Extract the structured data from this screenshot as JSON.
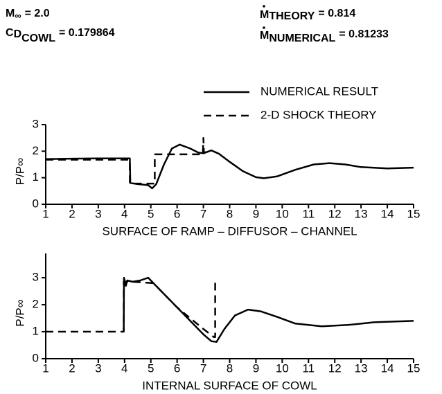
{
  "header": {
    "mach": {
      "base": "M",
      "sub": "∞",
      "rest": "= 2.0"
    },
    "cd": {
      "base": "C",
      "sub": "D",
      "subsub": "COWL",
      "rest": "= 0.179864"
    },
    "mtheory": {
      "base": "M",
      "sub": "THEORY",
      "rest": "= 0.814"
    },
    "mnum": {
      "base": "M",
      "sub": "NUMERICAL",
      "rest": "= 0.81233"
    }
  },
  "chart_data": [
    {
      "type": "line",
      "xlabel": "SURFACE OF RAMP – DIFFUSOR – CHANNEL",
      "ylabel": "P/P∞",
      "xlim": [
        1,
        15
      ],
      "ylim": [
        0,
        3
      ],
      "xticks": [
        1,
        2,
        3,
        4,
        5,
        6,
        7,
        8,
        9,
        10,
        11,
        12,
        13,
        14,
        15
      ],
      "yticks": [
        0,
        1,
        2,
        3
      ],
      "legend": "upper right",
      "series": [
        {
          "name": "NUMERICAL RESULT",
          "color": "#000000",
          "dashed": false,
          "x": [
            1,
            2,
            3,
            4,
            4.2,
            4.22,
            4.5,
            4.9,
            5.05,
            5.2,
            5.5,
            5.8,
            6.1,
            6.5,
            6.8,
            7.0,
            7.3,
            7.6,
            8,
            8.5,
            9,
            9.3,
            9.8,
            10.5,
            11.2,
            11.8,
            12.4,
            13,
            14,
            15
          ],
          "values": [
            1.7,
            1.72,
            1.73,
            1.73,
            1.73,
            0.8,
            0.76,
            0.72,
            0.6,
            0.75,
            1.5,
            2.1,
            2.25,
            2.1,
            1.95,
            1.92,
            2.03,
            1.9,
            1.6,
            1.25,
            1.02,
            0.98,
            1.05,
            1.3,
            1.5,
            1.55,
            1.5,
            1.4,
            1.35,
            1.38
          ]
        },
        {
          "name": "2-D SHOCK THEORY",
          "color": "#000000",
          "dashed": true,
          "x": [
            1,
            4.2,
            4.2,
            5.15,
            5.15,
            6.98,
            7.0,
            7.02,
            7.3
          ],
          "values": [
            1.68,
            1.68,
            0.78,
            0.78,
            1.88,
            1.88,
            2.5,
            1.95,
            2.0
          ]
        }
      ]
    },
    {
      "type": "line",
      "xlabel": "INTERNAL SURFACE OF COWL",
      "ylabel": "P/P∞",
      "xlim": [
        1,
        15
      ],
      "ylim": [
        0,
        3.9
      ],
      "xticks": [
        1,
        2,
        3,
        4,
        5,
        6,
        7,
        8,
        9,
        10,
        11,
        12,
        13,
        14,
        15
      ],
      "yticks": [
        0,
        1,
        2,
        3
      ],
      "series": [
        {
          "name": "NUMERICAL RESULT",
          "color": "#000000",
          "dashed": false,
          "x": [
            3.97,
            3.98,
            4.05,
            4.1,
            4.3,
            4.6,
            4.9,
            5.3,
            6,
            6.5,
            7,
            7.3,
            7.5,
            7.8,
            8.2,
            8.7,
            9.2,
            9.8,
            10.5,
            11.5,
            12.5,
            13.5,
            15
          ],
          "values": [
            1.0,
            3.0,
            2.7,
            2.9,
            2.85,
            2.9,
            3.0,
            2.6,
            1.9,
            1.4,
            0.9,
            0.65,
            0.62,
            1.1,
            1.6,
            1.82,
            1.75,
            1.55,
            1.3,
            1.2,
            1.25,
            1.35,
            1.4
          ]
        },
        {
          "name": "2-D SHOCK THEORY",
          "color": "#000000",
          "dashed": true,
          "x": [
            1,
            3.97,
            3.97,
            4.3,
            5.1,
            6,
            7,
            7.4,
            7.45,
            7.45
          ],
          "values": [
            1.0,
            1.0,
            2.85,
            2.85,
            2.8,
            1.9,
            1.1,
            0.8,
            0.8,
            2.95
          ]
        }
      ]
    }
  ]
}
